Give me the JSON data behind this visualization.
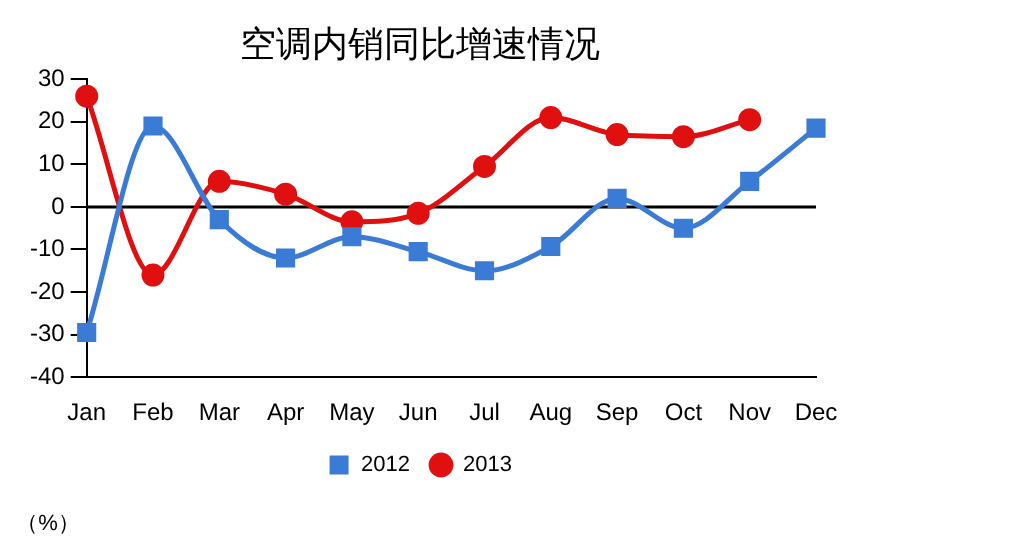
{
  "chart_data": {
    "type": "line",
    "title": "空调内销同比增速情况",
    "ylabel": "（%）",
    "categories": [
      "Jan",
      "Feb",
      "Mar",
      "Apr",
      "May",
      "Jun",
      "Jul",
      "Aug",
      "Sep",
      "Oct",
      "Nov",
      "Dec"
    ],
    "series": [
      {
        "name": "2012",
        "color": "#3a7bd5",
        "marker": "square",
        "values": [
          -29.5,
          19,
          -3,
          -12,
          -7,
          -10.5,
          -15,
          -9.3,
          2,
          -5,
          6,
          18.5
        ]
      },
      {
        "name": "2013",
        "color": "#e01010",
        "marker": "circle",
        "values": [
          26,
          -16,
          6,
          3,
          -3.5,
          -1.5,
          9.5,
          21,
          17,
          16.5,
          20.5,
          null
        ]
      }
    ],
    "ylim": [
      -40,
      30
    ],
    "yticks": [
      -40,
      -30,
      -20,
      -10,
      0,
      10,
      20,
      30
    ],
    "ref_lines": [
      {
        "axis": "y",
        "value": 0,
        "color": "#000000"
      }
    ],
    "grid": false,
    "legend": "bottom"
  }
}
